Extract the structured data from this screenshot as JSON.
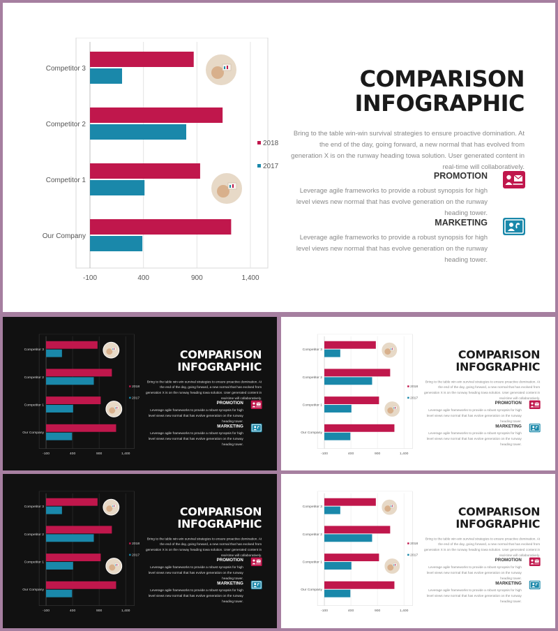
{
  "slides": [
    {
      "id": "main",
      "theme": "light"
    },
    {
      "id": "thumb-1",
      "theme": "dark"
    },
    {
      "id": "thumb-2",
      "theme": "light"
    },
    {
      "id": "thumb-3",
      "theme": "dark"
    },
    {
      "id": "thumb-4",
      "theme": "light"
    }
  ],
  "content": {
    "title_line1": "COMPARISON",
    "title_line2": "INFOGRAPHIC",
    "intro": "Bring to the table win-win survival strategies to ensure proactive domination. At the end of the day, going forward, a new normal that has evolved from generation X is on the runway heading towa solution. User generated content in real-time will collaboratively.",
    "promotion": {
      "heading": "PROMOTION",
      "body": "Leverage agile frameworks to provide a robust synopsis for high level views new normal that has evolve generation on the runway heading tower.",
      "icon": "presentation-mail-icon"
    },
    "marketing": {
      "heading": "MARKETING",
      "body": "Leverage agile frameworks to provide a robust synopsis for high level views new normal that has evolve generation on the runway heading tower.",
      "icon": "person-phone-icon"
    }
  },
  "colors": {
    "series_2018": "#c0174c",
    "series_2017": "#1a88aa",
    "frame": "#a67fa0"
  },
  "chart_data": {
    "type": "bar",
    "orientation": "horizontal",
    "categories": [
      "Competitor 3",
      "Competitor 2",
      "Competitor 1",
      "Our Company"
    ],
    "series": [
      {
        "name": "2018",
        "values": [
          870,
          1140,
          930,
          1220
        ]
      },
      {
        "name": "2017",
        "values": [
          200,
          800,
          410,
          390
        ]
      }
    ],
    "xlim": [
      -100,
      1400
    ],
    "xticks": [
      -100,
      400,
      900,
      1400
    ],
    "xtick_labels": [
      "-100",
      "400",
      "900",
      "1,400"
    ],
    "grid": true,
    "legend": "right",
    "legend_entries": [
      "2018",
      "2017"
    ]
  }
}
